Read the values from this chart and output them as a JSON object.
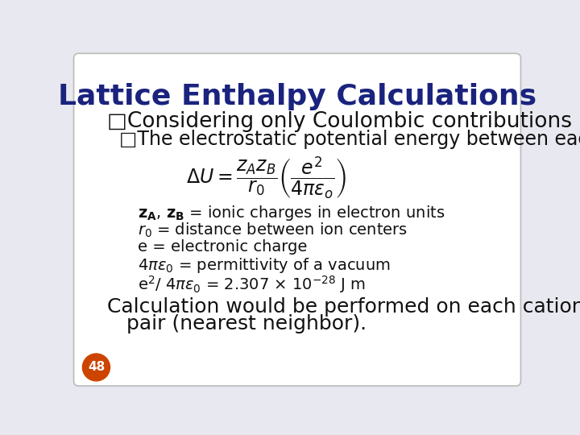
{
  "background_color": "#e8e8f0",
  "slide_bg": "#ffffff",
  "title": "Lattice Enthalpy Calculations",
  "title_color": "#1a237e",
  "title_fontsize": 26,
  "bullet1": "□Considering only Coulombic contributions",
  "bullet2": "□The electrostatic potential energy between each pair.",
  "bullet1_fontsize": 19,
  "bullet2_fontsize": 17,
  "line1": "$\\mathbf{z_A}$, $\\mathbf{z_B}$ = ionic charges in electron units",
  "line2": "$r_0$ = distance between ion centers",
  "line3": "e = electronic charge",
  "line4": "$4\\pi\\varepsilon_0$ = permittivity of a vacuum",
  "line5": "e$^2$/ $4\\pi\\varepsilon_0$ = 2.307 $\\times$ 10$^{-28}$ J m",
  "line_fontsize": 14,
  "calc_line1": "Calculation would be performed on each cation/anion",
  "calc_line2": "   pair (nearest neighbor).",
  "calc_fontsize": 18,
  "badge_color": "#cc4400",
  "badge_text": "48",
  "badge_fontsize": 11,
  "text_color": "#111111",
  "formula": "$\\Delta U = \\dfrac{z_A z_B}{r_0}\\left(\\dfrac{e^2}{4\\pi\\varepsilon_o}\\right)$",
  "formula_fontsize": 17
}
